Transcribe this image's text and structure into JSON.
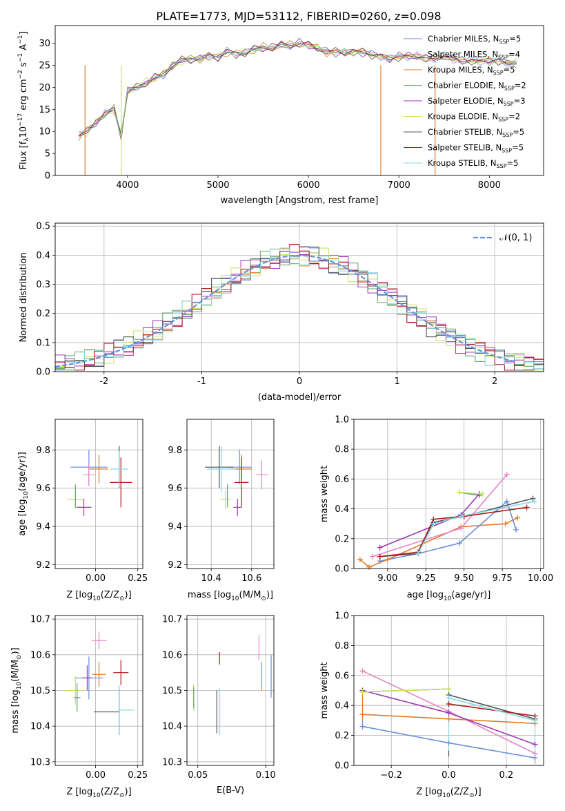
{
  "figure": {
    "title": "PLATE=1773, MJD=53112, FIBERID=0260, z=0.098"
  },
  "legend": [
    {
      "name": "Chabrier MILES, N_SSP=5",
      "label": "Chabrier MILES, N",
      "sub": "SSP",
      "tail": "=5",
      "color": "#6a8fdd"
    },
    {
      "name": "Salpeter MILES, N_SSP=4",
      "label": "Salpeter MILES, N",
      "sub": "SSP",
      "tail": "=4",
      "color": "#e884c4"
    },
    {
      "name": "Kroupa MILES, N_SSP=5",
      "label": "Kroupa MILES, N",
      "sub": "SSP",
      "tail": "=5",
      "color": "#e07b2a"
    },
    {
      "name": "Chabrier ELODIE, N_SSP=2",
      "label": "Chabrier ELODIE, N",
      "sub": "SSP",
      "tail": "=2",
      "color": "#5ea35e"
    },
    {
      "name": "Salpeter ELODIE, N_SSP=3",
      "label": "Salpeter ELODIE, N",
      "sub": "SSP",
      "tail": "=3",
      "color": "#9b35b5"
    },
    {
      "name": "Kroupa ELODIE, N_SSP=2",
      "label": "Kroupa ELODIE, N",
      "sub": "SSP",
      "tail": "=2",
      "color": "#c8e35a"
    },
    {
      "name": "Chabrier STELIB, N_SSP=5",
      "label": "Chabrier STELIB, N",
      "sub": "SSP",
      "tail": "=5",
      "color": "#555555"
    },
    {
      "name": "Salpeter STELIB, N_SSP=5",
      "label": "Salpeter STELIB, N",
      "sub": "SSP",
      "tail": "=5",
      "color": "#b01818"
    },
    {
      "name": "Kroupa STELIB, N_SSP=5",
      "label": "Kroupa STELIB, N",
      "sub": "SSP",
      "tail": "=5",
      "color": "#7fdbe6"
    }
  ],
  "chart_data": [
    {
      "id": "spectrum",
      "type": "line",
      "xlabel": "wavelength [Angstrom, rest frame]",
      "ylabel_pre": "Flux [f",
      "ylabel_sub": "λ",
      "ylabel_mid": "10",
      "ylabel_sup1": "−17",
      "ylabel_post": " erg cm",
      "ylabel_sup2": "−2",
      "ylabel_post2": " s",
      "ylabel_sup3": "−1",
      "ylabel_post3": " A",
      "ylabel_sup4": "−1",
      "ylabel_end": "]",
      "xlim": [
        3200,
        8600
      ],
      "ylim": [
        0,
        34
      ],
      "xticks": [
        4000,
        5000,
        6000,
        7000,
        8000
      ],
      "yticks": [
        0,
        5,
        10,
        15,
        20,
        25,
        30
      ],
      "grid": false,
      "legend_position": "top-right",
      "x": [
        3460,
        3550,
        3650,
        3750,
        3850,
        3930,
        4000,
        4100,
        4200,
        4300,
        4400,
        4500,
        4600,
        4700,
        4800,
        4900,
        5000,
        5100,
        5200,
        5300,
        5400,
        5500,
        5600,
        5700,
        5800,
        5900,
        6000,
        6100,
        6200,
        6300,
        6400,
        6500,
        6600,
        6700,
        6800,
        6900,
        7000,
        7100,
        7200,
        7300,
        7400,
        7500,
        7600,
        7700,
        7800,
        7900,
        8000,
        8100,
        8200,
        8300
      ],
      "y": [
        9,
        10,
        12,
        14,
        15,
        9,
        19,
        20,
        21,
        22,
        23,
        25,
        26,
        26.5,
        26.5,
        27,
        27,
        28,
        27.5,
        28,
        28.5,
        29,
        29,
        29.5,
        29.5,
        30,
        29.5,
        29,
        28,
        28,
        28,
        28,
        28,
        27.5,
        27,
        26.5,
        27,
        27,
        27,
        26.5,
        26.5,
        27,
        26.5,
        26,
        26,
        26,
        26,
        26,
        25.5,
        25.5
      ],
      "dips": [
        {
          "x": 3530,
          "color": "#e07b2a"
        },
        {
          "x": 3930,
          "color": "#c8e35a"
        },
        {
          "x": 6800,
          "color": "#e07b2a"
        },
        {
          "x": 7400,
          "color": "#e07b2a"
        }
      ]
    },
    {
      "id": "residuals",
      "type": "step",
      "xlabel": "(data-model)/error",
      "ylabel": "Normed distribution",
      "xlim": [
        -2.5,
        2.5
      ],
      "ylim": [
        0,
        0.51
      ],
      "xticks": [
        -2,
        -1,
        0,
        1,
        2
      ],
      "yticks": [
        0.0,
        0.1,
        0.2,
        0.3,
        0.4,
        0.5
      ],
      "grid": true,
      "legend_position": "top-right",
      "normal_curve_label": "𝒩(0, 1)",
      "normal_curve_color": "#6a8fdd"
    },
    {
      "id": "age-vs-Z",
      "type": "scatter",
      "xlabel_pre": "Z [log",
      "xlabel_sub": "10",
      "xlabel_post": "(Z/Z",
      "xlabel_sub2": "⊙",
      "xlabel_end": ")]",
      "ylabel_pre": "age  [log",
      "ylabel_sub": "10",
      "ylabel_post": "(age/yr)]",
      "xlim": [
        -0.24,
        0.28
      ],
      "ylim": [
        9.18,
        9.96
      ],
      "xticks": [
        0.0,
        0.25
      ],
      "xtick_labels": [
        "0.00",
        "0.25"
      ],
      "yticks": [
        9.2,
        9.4,
        9.6,
        9.8
      ],
      "grid": true,
      "points": [
        {
          "color": "#6a8fdd",
          "x": -0.04,
          "xerr": 0.22,
          "y": 9.71,
          "yerr": 0.18
        },
        {
          "color": "#e07b2a",
          "x": 0.02,
          "xerr": 0.11,
          "y": 9.7,
          "yerr": 0.15
        },
        {
          "color": "#e884c4",
          "x": -0.04,
          "xerr": 0.07,
          "y": 9.67,
          "yerr": 0.12
        },
        {
          "color": "#555555",
          "x": 0.14,
          "xerr": 0.0,
          "y": 9.71,
          "yerr": 0.22
        },
        {
          "color": "#b01818",
          "x": 0.15,
          "xerr": 0.13,
          "y": 9.63,
          "yerr": 0.26
        },
        {
          "color": "#7fdbe6",
          "x": 0.14,
          "xerr": 0.1,
          "y": 9.7,
          "yerr": 0.19
        },
        {
          "color": "#c8e35a",
          "x": -0.12,
          "xerr": 0.1,
          "y": 9.54,
          "yerr": 0.1
        },
        {
          "color": "#5ea35e",
          "x": -0.12,
          "xerr": 0.0,
          "y": 9.56,
          "yerr": 0.12
        },
        {
          "color": "#9b35b5",
          "x": -0.07,
          "xerr": 0.09,
          "y": 9.5,
          "yerr": 0.09
        }
      ]
    },
    {
      "id": "age-vs-mass",
      "type": "scatter",
      "xlabel_pre": "mass [log",
      "xlabel_sub": "10",
      "xlabel_post": "(M/M",
      "xlabel_sub2": "⊙",
      "xlabel_end": ")]",
      "xlim": [
        10.28,
        10.71
      ],
      "ylim": [
        9.18,
        9.96
      ],
      "xticks": [
        10.4,
        10.6
      ],
      "xtick_labels": [
        "10.4",
        "10.6"
      ],
      "yticks": [
        9.2,
        9.4,
        9.6,
        9.8
      ],
      "grid": true,
      "points": [
        {
          "color": "#6a8fdd",
          "x": 10.54,
          "xerr": 0.12,
          "y": 9.71,
          "yerr": 0.18
        },
        {
          "color": "#e07b2a",
          "x": 10.55,
          "xerr": 0.1,
          "y": 9.7,
          "yerr": 0.15
        },
        {
          "color": "#e884c4",
          "x": 10.65,
          "xerr": 0.06,
          "y": 9.67,
          "yerr": 0.15
        },
        {
          "color": "#555555",
          "x": 10.44,
          "xerr": 0.14,
          "y": 9.71,
          "yerr": 0.22
        },
        {
          "color": "#b01818",
          "x": 10.55,
          "xerr": 0.07,
          "y": 9.63,
          "yerr": 0.26
        },
        {
          "color": "#7fdbe6",
          "x": 10.45,
          "xerr": 0.14,
          "y": 9.7,
          "yerr": 0.24
        },
        {
          "color": "#c8e35a",
          "x": 10.47,
          "xerr": 0.05,
          "y": 9.54,
          "yerr": 0.1
        },
        {
          "color": "#5ea35e",
          "x": 10.48,
          "xerr": 0.0,
          "y": 9.56,
          "yerr": 0.12
        },
        {
          "color": "#9b35b5",
          "x": 10.53,
          "xerr": 0.04,
          "y": 9.5,
          "yerr": 0.09
        }
      ]
    },
    {
      "id": "mass-weight-vs-age",
      "type": "line",
      "xlabel_pre": "age  [log",
      "xlabel_sub": "10",
      "xlabel_post": "(age/yr)]",
      "ylabel": "mass weight",
      "xlim": [
        8.78,
        10.02
      ],
      "ylim": [
        0,
        1.0
      ],
      "xticks": [
        9.0,
        9.25,
        9.5,
        9.75,
        10.0
      ],
      "xtick_labels": [
        "9.00",
        "9.25",
        "9.50",
        "9.75",
        "10.00"
      ],
      "yticks": [
        0.0,
        0.2,
        0.4,
        0.6,
        0.8,
        1.0
      ],
      "grid": true,
      "series": [
        {
          "color": "#6a8fdd",
          "x": [
            8.95,
            9.2,
            9.47,
            9.78,
            9.84
          ],
          "y": [
            0.05,
            0.1,
            0.17,
            0.45,
            0.26
          ]
        },
        {
          "color": "#e07b2a",
          "x": [
            8.82,
            8.88,
            9.0,
            9.48,
            9.77,
            9.85
          ],
          "y": [
            0.06,
            0.01,
            0.06,
            0.28,
            0.3,
            0.34
          ]
        },
        {
          "color": "#e884c4",
          "x": [
            8.9,
            9.48,
            9.78
          ],
          "y": [
            0.08,
            0.27,
            0.63
          ]
        },
        {
          "color": "#5ea35e",
          "x": [
            9.47,
            9.6
          ],
          "y": [
            0.51,
            0.49
          ]
        },
        {
          "color": "#9b35b5",
          "x": [
            8.95,
            9.48,
            9.6
          ],
          "y": [
            0.14,
            0.36,
            0.5
          ]
        },
        {
          "color": "#c8e35a",
          "x": [
            9.47,
            9.62
          ],
          "y": [
            0.51,
            0.5
          ]
        },
        {
          "color": "#555555",
          "x": [
            8.95,
            9.2,
            9.3,
            9.5,
            9.95
          ],
          "y": [
            0.08,
            0.1,
            0.31,
            0.35,
            0.47
          ]
        },
        {
          "color": "#b01818",
          "x": [
            8.95,
            9.2,
            9.3,
            9.5,
            9.91
          ],
          "y": [
            0.08,
            0.11,
            0.33,
            0.35,
            0.41
          ]
        },
        {
          "color": "#7fdbe6",
          "x": [
            9.2,
            9.3,
            9.48,
            9.96
          ],
          "y": [
            0.1,
            0.3,
            0.35,
            0.45
          ]
        }
      ]
    },
    {
      "id": "mass-vs-Z",
      "type": "scatter",
      "xlabel_pre": "Z [log",
      "xlabel_sub": "10",
      "xlabel_post": "(Z/Z",
      "xlabel_sub2": "⊙",
      "xlabel_end": ")]",
      "ylabel_pre": "mass [log",
      "ylabel_sub": "10",
      "ylabel_post": "(M/M",
      "ylabel_sub2": "⊙",
      "ylabel_end": ")]",
      "xlim": [
        -0.24,
        0.28
      ],
      "ylim": [
        10.29,
        10.71
      ],
      "xticks": [
        0.0,
        0.25
      ],
      "xtick_labels": [
        "0.00",
        "0.25"
      ],
      "yticks": [
        10.3,
        10.4,
        10.5,
        10.6,
        10.7
      ],
      "grid": true,
      "points": [
        {
          "color": "#6a8fdd",
          "x": -0.04,
          "xerr": 0.17,
          "y": 10.535,
          "yerr": 0.12
        },
        {
          "color": "#e07b2a",
          "x": 0.02,
          "xerr": 0.08,
          "y": 10.545,
          "yerr": 0.07
        },
        {
          "color": "#e884c4",
          "x": 0.02,
          "xerr": 0.09,
          "y": 10.64,
          "yerr": 0.05
        },
        {
          "color": "#555555",
          "x": 0.14,
          "xerr": 0.0,
          "y": 10.44,
          "yerr": 0.13
        },
        {
          "color": "#b01818",
          "x": 0.15,
          "xerr": 0.09,
          "y": 10.55,
          "yerr": 0.07
        },
        {
          "color": "#7fdbe6",
          "x": 0.14,
          "xerr": 0.0,
          "y": 10.445,
          "yerr": 0.14
        },
        {
          "color": "#c8e35a",
          "x": -0.12,
          "xerr": 0.1,
          "y": 10.5,
          "yerr": 0.08
        },
        {
          "color": "#5ea35e",
          "x": -0.11,
          "xerr": 0.04,
          "y": 10.48,
          "yerr": 0.08
        },
        {
          "color": "#9b35b5",
          "x": -0.05,
          "xerr": 0.06,
          "y": 10.535,
          "yerr": 0.07
        }
      ],
      "extra_hlines": [
        {
          "color": "#555555",
          "x0": -0.01,
          "x1": 0.14,
          "y": 10.44
        },
        {
          "color": "#7fdbe6",
          "x0": 0.14,
          "x1": 0.23,
          "y": 10.445
        }
      ]
    },
    {
      "id": "mass-vs-ebv",
      "type": "scatter",
      "xlabel": "E(B-V)",
      "xlim": [
        0.042,
        0.106
      ],
      "ylim": [
        10.29,
        10.71
      ],
      "xticks": [
        0.05,
        0.1
      ],
      "xtick_labels": [
        "0.05",
        "0.10"
      ],
      "yticks": [
        10.3,
        10.4,
        10.5,
        10.6,
        10.7
      ],
      "grid": true,
      "points": [
        {
          "color": "#6a8fdd",
          "x": 0.104,
          "y": 10.54,
          "yerr": 0.12
        },
        {
          "color": "#e07b2a",
          "x": 0.097,
          "y": 10.54,
          "yerr": 0.08
        },
        {
          "color": "#e884c4",
          "x": 0.095,
          "y": 10.62,
          "yerr": 0.07
        },
        {
          "color": "#555555",
          "x": 0.064,
          "y": 10.44,
          "yerr": 0.12
        },
        {
          "color": "#b01818",
          "x": 0.066,
          "y": 10.59,
          "yerr": 0.035
        },
        {
          "color": "#7fdbe6",
          "x": 0.066,
          "y": 10.44,
          "yerr": 0.13
        },
        {
          "color": "#c8e35a",
          "x": 0.047,
          "y": 10.48,
          "yerr": 0.075
        },
        {
          "color": "#5ea35e",
          "x": 0.047,
          "y": 10.48,
          "yerr": 0.06
        }
      ]
    },
    {
      "id": "mass-weight-vs-Z",
      "type": "line",
      "xlabel_pre": "Z [log",
      "xlabel_sub": "10",
      "xlabel_post": "(Z/Z",
      "xlabel_sub2": "⊙",
      "xlabel_end": ")]",
      "ylabel": "mass weight",
      "xlim": [
        -0.33,
        0.33
      ],
      "ylim": [
        0,
        1.0
      ],
      "xticks": [
        -0.2,
        0.0,
        0.2
      ],
      "xtick_labels": [
        "−0.2",
        "0.0",
        "0.2"
      ],
      "yticks": [
        0.0,
        0.2,
        0.4,
        0.6,
        0.8,
        1.0
      ],
      "grid": true,
      "series": [
        {
          "color": "#6a8fdd",
          "x": [
            -0.3,
            0.0,
            0.3
          ],
          "y": [
            0.26,
            0.15,
            0.05
          ]
        },
        {
          "color": "#e07b2a",
          "x": [
            -0.3,
            0.0,
            0.3
          ],
          "y": [
            0.34,
            0.31,
            0.28
          ]
        },
        {
          "color": "#e884c4",
          "x": [
            -0.3,
            0.0,
            0.3
          ],
          "y": [
            0.63,
            0.36,
            0.08
          ]
        },
        {
          "color": "#5ea35e",
          "x": [
            -0.3,
            0.0
          ],
          "y": [
            0.49,
            0.51
          ]
        },
        {
          "color": "#9b35b5",
          "x": [
            -0.3,
            0.0,
            0.3
          ],
          "y": [
            0.5,
            0.35,
            0.14
          ]
        },
        {
          "color": "#c8e35a",
          "x": [
            -0.3,
            0.0
          ],
          "y": [
            0.49,
            0.51
          ]
        },
        {
          "color": "#555555",
          "x": [
            0.0,
            0.3
          ],
          "y": [
            0.47,
            0.31
          ]
        },
        {
          "color": "#b01818",
          "x": [
            0.0,
            0.3
          ],
          "y": [
            0.41,
            0.33
          ]
        },
        {
          "color": "#7fdbe6",
          "x": [
            0.0,
            0.3
          ],
          "y": [
            0.45,
            0.3
          ]
        }
      ],
      "vlines": [
        {
          "color": "#6a8fdd",
          "x": -0.3,
          "y0": 0.26,
          "y1": 0.45
        },
        {
          "color": "#e07b2a",
          "x": -0.3,
          "y0": 0.3,
          "y1": 0.49
        },
        {
          "color": "#7fdbe6",
          "x": 0.0,
          "y0": 0.06,
          "y1": 0.45
        },
        {
          "color": "#555555",
          "x": 0.0,
          "y0": 0.06,
          "y1": 0.1
        },
        {
          "color": "#7fdbe6",
          "x": 0.3,
          "y0": 0.06,
          "y1": 0.3
        },
        {
          "color": "#e07b2a",
          "x": 0.3,
          "y0": 0.01,
          "y1": 0.06
        }
      ]
    }
  ]
}
